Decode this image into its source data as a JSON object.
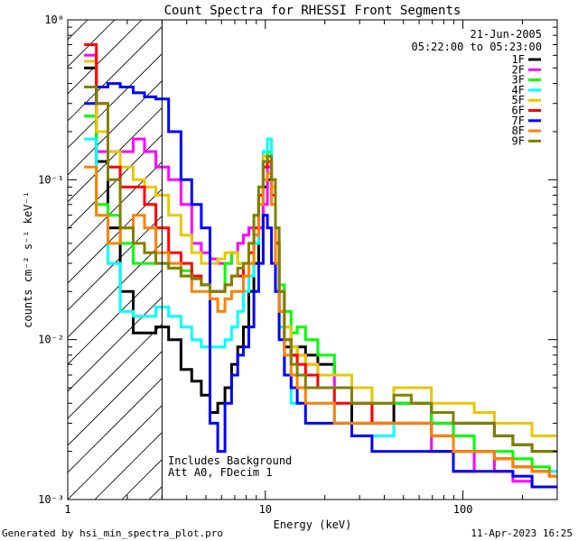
{
  "chart_data": {
    "type": "line",
    "step": true,
    "title": "Count Spectra for RHESSI Front Segments",
    "date": "21-Jun-2005",
    "time_range": "05:22:00 to 05:23:00",
    "xlabel": "Energy (keV)",
    "ylabel": "counts cm⁻² s⁻¹ keV⁻¹",
    "xscale": "log",
    "yscale": "log",
    "xlim": [
      1,
      300
    ],
    "ylim": [
      0.001,
      1
    ],
    "x_ticks": [
      {
        "value": 1,
        "label": "1"
      },
      {
        "value": 10,
        "label": "10"
      },
      {
        "value": 100,
        "label": "100"
      }
    ],
    "y_ticks": [
      {
        "value": 0.001,
        "label": "10⁻³"
      },
      {
        "value": 0.01,
        "label": "10⁻²"
      },
      {
        "value": 0.1,
        "label": "10⁻¹"
      },
      {
        "value": 1,
        "label": "10⁰"
      }
    ],
    "threshold_keV": 3,
    "notes": [
      "Includes Background",
      "Att A0, FDecim 1"
    ],
    "series": [
      {
        "name": "1F",
        "color": "#000000",
        "x": [
          1.3,
          1.5,
          1.7,
          2.0,
          2.3,
          2.6,
          3.0,
          3.5,
          4.0,
          4.5,
          5.0,
          5.5,
          6.0,
          6.5,
          7.0,
          7.5,
          8.0,
          8.5,
          9.0,
          9.5,
          10.0,
          10.5,
          11.0,
          11.5,
          12,
          13,
          14,
          15,
          17,
          20,
          25,
          30,
          40,
          50,
          60,
          80,
          100,
          130,
          160,
          200,
          250,
          300
        ],
        "values": [
          0.5,
          0.13,
          0.05,
          0.02,
          0.011,
          0.011,
          0.012,
          0.01,
          0.0065,
          0.0055,
          0.0045,
          0.0035,
          0.004,
          0.005,
          0.007,
          0.009,
          0.012,
          0.02,
          0.03,
          0.05,
          0.09,
          0.1,
          0.08,
          0.04,
          0.015,
          0.009,
          0.008,
          0.009,
          0.008,
          0.007,
          0.006,
          0.003,
          0.003,
          0.004,
          0.004,
          0.003,
          0.003,
          0.003,
          0.0025,
          0.0022,
          0.002,
          0.002
        ]
      },
      {
        "name": "2F",
        "color": "#ff00ff",
        "x": [
          1.3,
          1.5,
          1.7,
          2.0,
          2.3,
          2.6,
          3.0,
          3.5,
          4.0,
          4.5,
          5.0,
          5.5,
          6.0,
          6.5,
          7.0,
          7.5,
          8.0,
          8.5,
          9.0,
          9.5,
          10.0,
          10.5,
          11.0,
          11.5,
          12,
          13,
          14,
          15,
          17,
          20,
          25,
          30,
          40,
          50,
          60,
          80,
          100,
          130,
          160,
          200,
          250,
          300
        ],
        "values": [
          0.6,
          0.15,
          0.15,
          0.15,
          0.18,
          0.15,
          0.12,
          0.1,
          0.07,
          0.04,
          0.035,
          0.032,
          0.03,
          0.03,
          0.035,
          0.04,
          0.045,
          0.05,
          0.05,
          0.05,
          0.07,
          0.12,
          0.08,
          0.04,
          0.02,
          0.012,
          0.009,
          0.008,
          0.007,
          0.006,
          0.005,
          0.004,
          0.003,
          0.003,
          0.003,
          0.002,
          0.0015,
          0.002,
          0.0015,
          0.0013,
          0.0012,
          0.0012
        ]
      },
      {
        "name": "3F",
        "color": "#00ff00",
        "x": [
          1.3,
          1.5,
          1.7,
          2.0,
          2.3,
          2.6,
          3.0,
          3.5,
          4.0,
          4.5,
          5.0,
          5.5,
          6.0,
          6.5,
          7.0,
          7.5,
          8.0,
          8.5,
          9.0,
          9.5,
          10.0,
          10.5,
          11.0,
          11.5,
          12,
          13,
          14,
          15,
          17,
          20,
          25,
          30,
          40,
          50,
          60,
          80,
          100,
          130,
          160,
          200,
          250,
          300
        ],
        "values": [
          0.25,
          0.07,
          0.06,
          0.04,
          0.03,
          0.03,
          0.03,
          0.028,
          0.027,
          0.025,
          0.022,
          0.02,
          0.02,
          0.03,
          0.035,
          0.03,
          0.025,
          0.04,
          0.06,
          0.08,
          0.13,
          0.15,
          0.1,
          0.05,
          0.022,
          0.015,
          0.011,
          0.012,
          0.01,
          0.008,
          0.006,
          0.005,
          0.004,
          0.004,
          0.004,
          0.003,
          0.0025,
          0.002,
          0.002,
          0.0018,
          0.0016,
          0.0015
        ]
      },
      {
        "name": "4F",
        "color": "#00ffff",
        "x": [
          1.3,
          1.5,
          1.7,
          2.0,
          2.3,
          2.6,
          3.0,
          3.5,
          4.0,
          4.5,
          5.0,
          5.5,
          6.0,
          6.5,
          7.0,
          7.5,
          8.0,
          8.5,
          9.0,
          9.5,
          10.0,
          10.5,
          11.0,
          11.5,
          12,
          13,
          14,
          15,
          17,
          20,
          25,
          30,
          40,
          50,
          60,
          80,
          100,
          130,
          160,
          200,
          250,
          300
        ],
        "values": [
          0.18,
          0.06,
          0.03,
          0.015,
          0.014,
          0.014,
          0.016,
          0.014,
          0.012,
          0.01,
          0.009,
          0.009,
          0.009,
          0.01,
          0.012,
          0.015,
          0.02,
          0.025,
          0.04,
          0.08,
          0.15,
          0.18,
          0.1,
          0.03,
          0.012,
          0.006,
          0.004,
          0.004,
          0.004,
          0.004,
          0.003,
          0.0025,
          0.0025,
          0.003,
          0.003,
          0.0025,
          0.002,
          0.002,
          0.0018,
          0.0016,
          0.0015,
          0.0015
        ]
      },
      {
        "name": "5F",
        "color": "#e8c800",
        "x": [
          1.3,
          1.5,
          1.7,
          2.0,
          2.3,
          2.6,
          3.0,
          3.5,
          4.0,
          4.5,
          5.0,
          5.5,
          6.0,
          6.5,
          7.0,
          7.5,
          8.0,
          8.5,
          9.0,
          9.5,
          10.0,
          10.5,
          11.0,
          11.5,
          12,
          13,
          14,
          15,
          17,
          20,
          25,
          30,
          40,
          50,
          60,
          80,
          100,
          130,
          160,
          200,
          250,
          300
        ],
        "values": [
          0.55,
          0.2,
          0.15,
          0.12,
          0.1,
          0.09,
          0.08,
          0.06,
          0.045,
          0.035,
          0.03,
          0.03,
          0.032,
          0.035,
          0.035,
          0.03,
          0.025,
          0.03,
          0.045,
          0.08,
          0.14,
          0.13,
          0.09,
          0.04,
          0.02,
          0.012,
          0.009,
          0.008,
          0.007,
          0.006,
          0.006,
          0.005,
          0.004,
          0.005,
          0.005,
          0.004,
          0.004,
          0.0035,
          0.003,
          0.003,
          0.0025,
          0.0025
        ]
      },
      {
        "name": "6F",
        "color": "#ff0000",
        "x": [
          1.3,
          1.5,
          1.7,
          2.0,
          2.3,
          2.6,
          3.0,
          3.5,
          4.0,
          4.5,
          5.0,
          5.5,
          6.0,
          6.5,
          7.0,
          7.5,
          8.0,
          8.5,
          9.0,
          9.5,
          10.0,
          10.5,
          11.0,
          11.5,
          12,
          13,
          14,
          15,
          17,
          20,
          25,
          30,
          40,
          50,
          60,
          80,
          100,
          130,
          160,
          200,
          250,
          300
        ],
        "values": [
          0.7,
          0.3,
          0.12,
          0.09,
          0.09,
          0.07,
          0.05,
          0.035,
          0.03,
          0.025,
          0.022,
          0.02,
          0.02,
          0.022,
          0.025,
          0.025,
          0.03,
          0.035,
          0.05,
          0.08,
          0.12,
          0.13,
          0.08,
          0.04,
          0.02,
          0.01,
          0.008,
          0.007,
          0.006,
          0.005,
          0.004,
          0.004,
          0.003,
          0.003,
          0.003,
          0.0025,
          0.002,
          0.002,
          0.0018,
          0.0016,
          0.0015,
          0.0014
        ]
      },
      {
        "name": "7F",
        "color": "#0000ff",
        "x": [
          1.3,
          1.5,
          1.7,
          2.0,
          2.3,
          2.6,
          3.0,
          3.5,
          4.0,
          4.5,
          5.0,
          5.5,
          6.0,
          6.5,
          7.0,
          7.5,
          8.0,
          8.5,
          9.0,
          9.5,
          10.0,
          10.5,
          11.0,
          11.5,
          12,
          13,
          14,
          15,
          17,
          20,
          25,
          30,
          40,
          50,
          60,
          80,
          100,
          130,
          160,
          200,
          250,
          300
        ],
        "values": [
          0.3,
          0.38,
          0.4,
          0.38,
          0.35,
          0.33,
          0.32,
          0.2,
          0.1,
          0.07,
          0.05,
          0.003,
          0.002,
          0.004,
          0.006,
          0.008,
          0.009,
          0.012,
          0.02,
          0.03,
          0.06,
          0.05,
          0.03,
          0.02,
          0.01,
          0.006,
          0.005,
          0.004,
          0.003,
          0.003,
          0.003,
          0.0025,
          0.002,
          0.002,
          0.002,
          0.002,
          0.0015,
          0.0015,
          0.0015,
          0.0014,
          0.0012,
          0.0012
        ]
      },
      {
        "name": "8F",
        "color": "#ff8000",
        "x": [
          1.3,
          1.5,
          1.7,
          2.0,
          2.3,
          2.6,
          3.0,
          3.5,
          4.0,
          4.5,
          5.0,
          5.5,
          6.0,
          6.5,
          7.0,
          7.5,
          8.0,
          8.5,
          9.0,
          9.5,
          10.0,
          10.5,
          11.0,
          11.5,
          12,
          13,
          14,
          15,
          17,
          20,
          25,
          30,
          40,
          50,
          60,
          80,
          100,
          130,
          160,
          200,
          250,
          300
        ],
        "values": [
          0.12,
          0.06,
          0.04,
          0.05,
          0.06,
          0.05,
          0.035,
          0.03,
          0.025,
          0.02,
          0.02,
          0.018,
          0.015,
          0.018,
          0.02,
          0.02,
          0.025,
          0.03,
          0.045,
          0.07,
          0.1,
          0.11,
          0.07,
          0.03,
          0.015,
          0.008,
          0.006,
          0.005,
          0.004,
          0.004,
          0.003,
          0.003,
          0.003,
          0.003,
          0.003,
          0.0025,
          0.002,
          0.002,
          0.0018,
          0.0016,
          0.0015,
          0.0014
        ]
      },
      {
        "name": "9F",
        "color": "#808000",
        "x": [
          1.3,
          1.5,
          1.7,
          2.0,
          2.3,
          2.6,
          3.0,
          3.5,
          4.0,
          4.5,
          5.0,
          5.5,
          6.0,
          6.5,
          7.0,
          7.5,
          8.0,
          8.5,
          9.0,
          9.5,
          10.0,
          10.5,
          11.0,
          11.5,
          12,
          13,
          14,
          15,
          17,
          20,
          25,
          30,
          40,
          50,
          60,
          80,
          100,
          130,
          160,
          200,
          250,
          300
        ],
        "values": [
          0.38,
          0.3,
          0.1,
          0.05,
          0.04,
          0.035,
          0.03,
          0.028,
          0.025,
          0.024,
          0.022,
          0.02,
          0.02,
          0.022,
          0.025,
          0.028,
          0.03,
          0.04,
          0.06,
          0.09,
          0.13,
          0.14,
          0.1,
          0.05,
          0.02,
          0.01,
          0.007,
          0.006,
          0.005,
          0.005,
          0.005,
          0.004,
          0.004,
          0.0045,
          0.004,
          0.0035,
          0.003,
          0.003,
          0.0025,
          0.0022,
          0.002,
          0.002
        ]
      }
    ]
  },
  "footer": {
    "generated_by": "Generated by hsi_min_spectra_plot.pro",
    "timestamp": "11-Apr-2023 16:25"
  }
}
